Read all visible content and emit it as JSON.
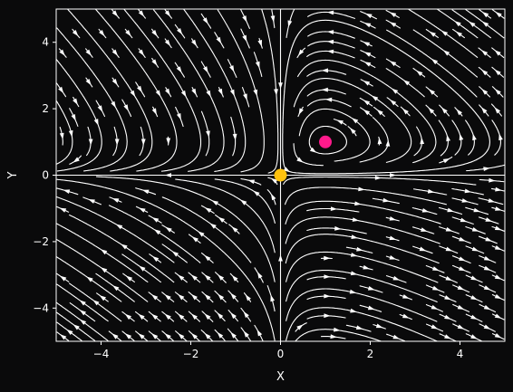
{
  "chart_data": {
    "type": "streamplot",
    "title": "",
    "xlabel": "X",
    "ylabel": "Y",
    "xlim": [
      -5,
      5
    ],
    "ylim": [
      -5,
      5
    ],
    "xticks": [
      {
        "value": -4,
        "label": "−4"
      },
      {
        "value": -2,
        "label": "−2"
      },
      {
        "value": 0,
        "label": "0"
      },
      {
        "value": 2,
        "label": "2"
      },
      {
        "value": 4,
        "label": "4"
      }
    ],
    "yticks": [
      {
        "value": -4,
        "label": "−4"
      },
      {
        "value": -2,
        "label": "−2"
      },
      {
        "value": 0,
        "label": "0"
      },
      {
        "value": 2,
        "label": "2"
      },
      {
        "value": 4,
        "label": "4"
      }
    ],
    "grid": false,
    "background_color": "#0a0a0b",
    "stream_color": "#ffffff",
    "vector_field": {
      "dx": "x*(1-y)",
      "dy": "y*(x-1)"
    },
    "equilibrium_points": [
      {
        "x": 0,
        "y": 0,
        "color": "#ffc20e"
      },
      {
        "x": 1,
        "y": 1,
        "color": "#ff1a8c"
      }
    ]
  }
}
